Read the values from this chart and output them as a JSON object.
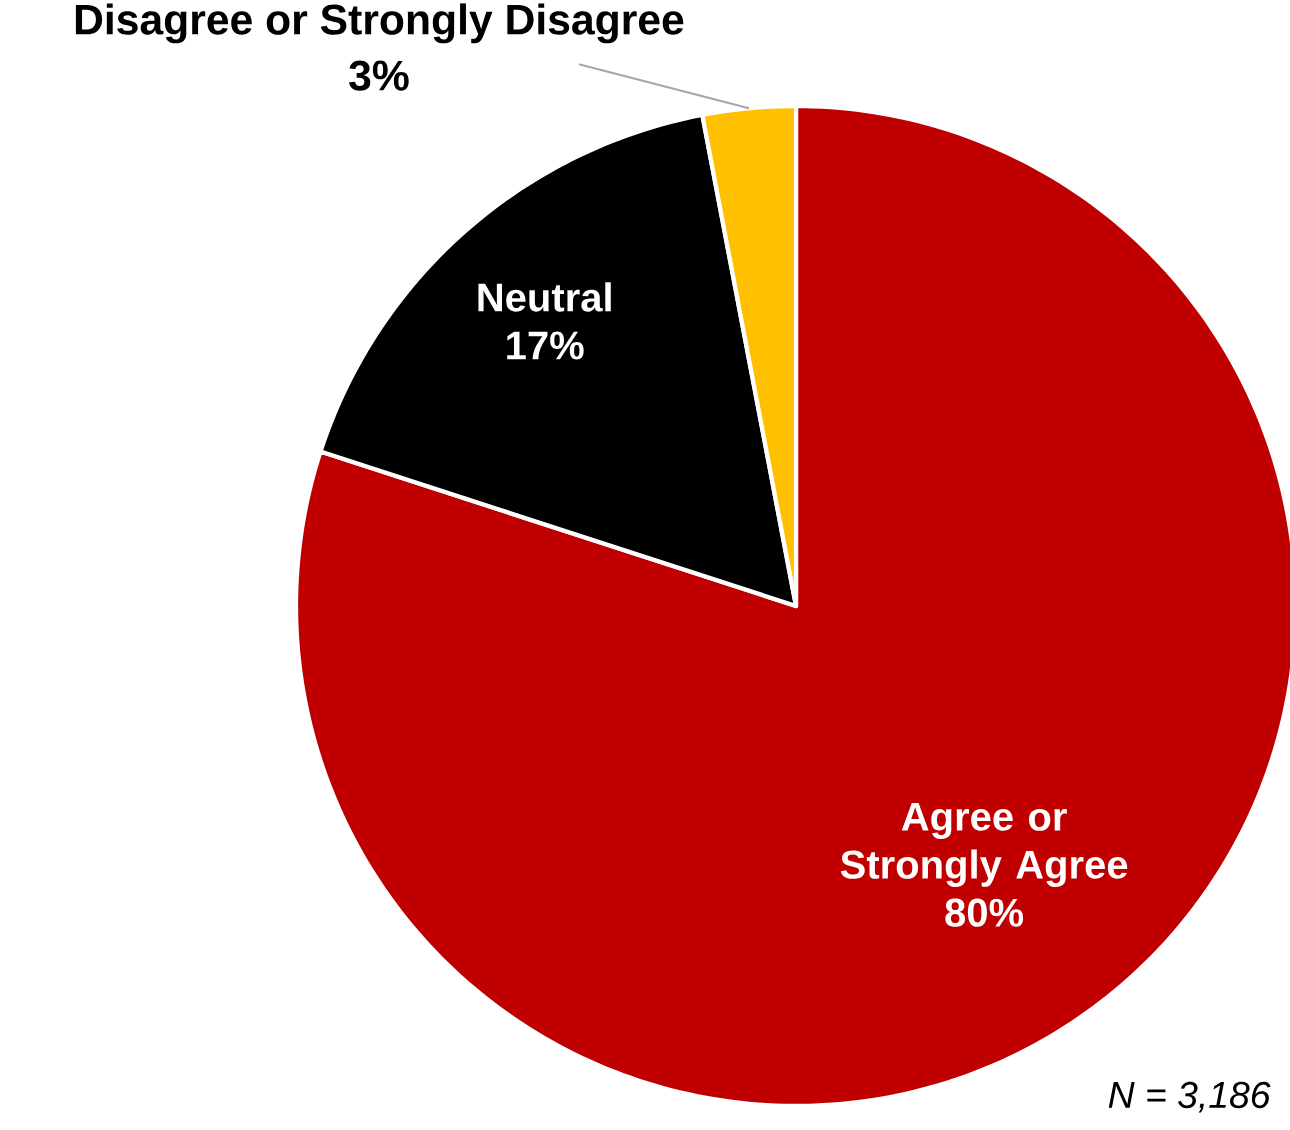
{
  "chart_data": {
    "type": "pie",
    "categories": [
      "Agree or Strongly Agree",
      "Neutral",
      "Disagree or Strongly Disagree"
    ],
    "values": [
      80,
      17,
      3
    ],
    "colors": [
      "#c00000",
      "#000000",
      "#ffc000"
    ],
    "data_labels": true,
    "value_labels": [
      "80%",
      "17%",
      "3%"
    ],
    "annotations": [
      "N = 3,186"
    ]
  }
}
